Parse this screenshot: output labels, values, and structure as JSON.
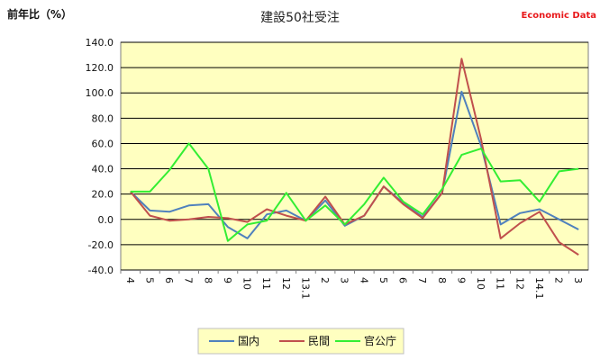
{
  "chart_data": {
    "type": "line",
    "title": "建設50社受注",
    "ylabel": "前年比（%）",
    "brand": "Economic Data",
    "ylim": [
      -40,
      140
    ],
    "yticks": [
      "-40.0",
      "-20.0",
      "0.0",
      "20.0",
      "40.0",
      "60.0",
      "80.0",
      "100.0",
      "120.0",
      "140.0"
    ],
    "categories": [
      "4",
      "5",
      "6",
      "7",
      "8",
      "9",
      "10",
      "11",
      "12",
      "13.1",
      "2",
      "3",
      "4",
      "5",
      "6",
      "7",
      "8",
      "9",
      "10",
      "11",
      "12",
      "14.1",
      "2",
      "3"
    ],
    "grid": true,
    "plot_background": "#ffffc0",
    "legend_position": "bottom",
    "series": [
      {
        "name": "国内",
        "color": "#4f81bd",
        "values": [
          22,
          7,
          6,
          11,
          12,
          -6,
          -15,
          4,
          7,
          -1,
          15,
          -5,
          3,
          26,
          13,
          2,
          21,
          101,
          58,
          -4,
          5,
          8,
          0,
          -8
        ]
      },
      {
        "name": "民間",
        "color": "#c0504d",
        "values": [
          22,
          3,
          -1,
          0,
          2,
          1,
          -2,
          8,
          3,
          -1,
          18,
          -4,
          3,
          26,
          12,
          1,
          21,
          127,
          63,
          -15,
          -3,
          6,
          -18,
          -28
        ]
      },
      {
        "name": "官公庁",
        "color": "#33ee33",
        "values": [
          22,
          22,
          39,
          60,
          40,
          -17,
          -4,
          -1,
          21,
          -1,
          11,
          -4,
          12,
          33,
          14,
          4,
          24,
          51,
          56,
          30,
          31,
          14,
          38,
          40
        ]
      }
    ]
  }
}
